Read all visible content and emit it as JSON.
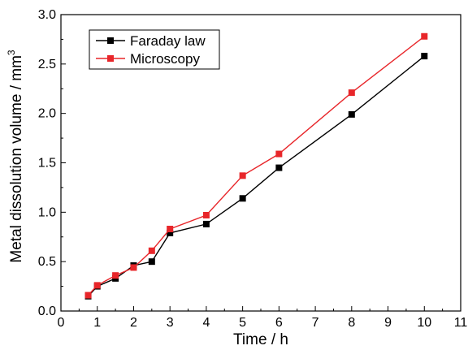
{
  "chart_data": {
    "type": "line",
    "xlabel": "Time / h",
    "ylabel": "Metal dissolution volume / mm",
    "ylabel_superscript": "3",
    "xlim": [
      0,
      11
    ],
    "ylim": [
      0.0,
      3.0
    ],
    "x_ticks": [
      "0",
      "1",
      "2",
      "3",
      "4",
      "5",
      "6",
      "7",
      "8",
      "9",
      "10",
      "11"
    ],
    "y_ticks": [
      "0.0",
      "0.5",
      "1.0",
      "1.5",
      "2.0",
      "2.5",
      "3.0"
    ],
    "grid": false,
    "legend_position": "top-left",
    "series": [
      {
        "name": "Faraday law",
        "color": "#000000",
        "marker": "square",
        "x": [
          0.75,
          1,
          1.5,
          2,
          2.5,
          3,
          4,
          5,
          6,
          8,
          10
        ],
        "y": [
          0.15,
          0.25,
          0.33,
          0.46,
          0.5,
          0.79,
          0.88,
          1.14,
          1.45,
          1.99,
          2.58
        ]
      },
      {
        "name": "Microscopy",
        "color": "#e8262a",
        "marker": "square",
        "x": [
          0.75,
          1,
          1.5,
          2,
          2.5,
          3,
          4,
          5,
          6,
          8,
          10
        ],
        "y": [
          0.16,
          0.26,
          0.36,
          0.44,
          0.61,
          0.83,
          0.97,
          1.37,
          1.59,
          2.21,
          2.78
        ]
      }
    ]
  }
}
